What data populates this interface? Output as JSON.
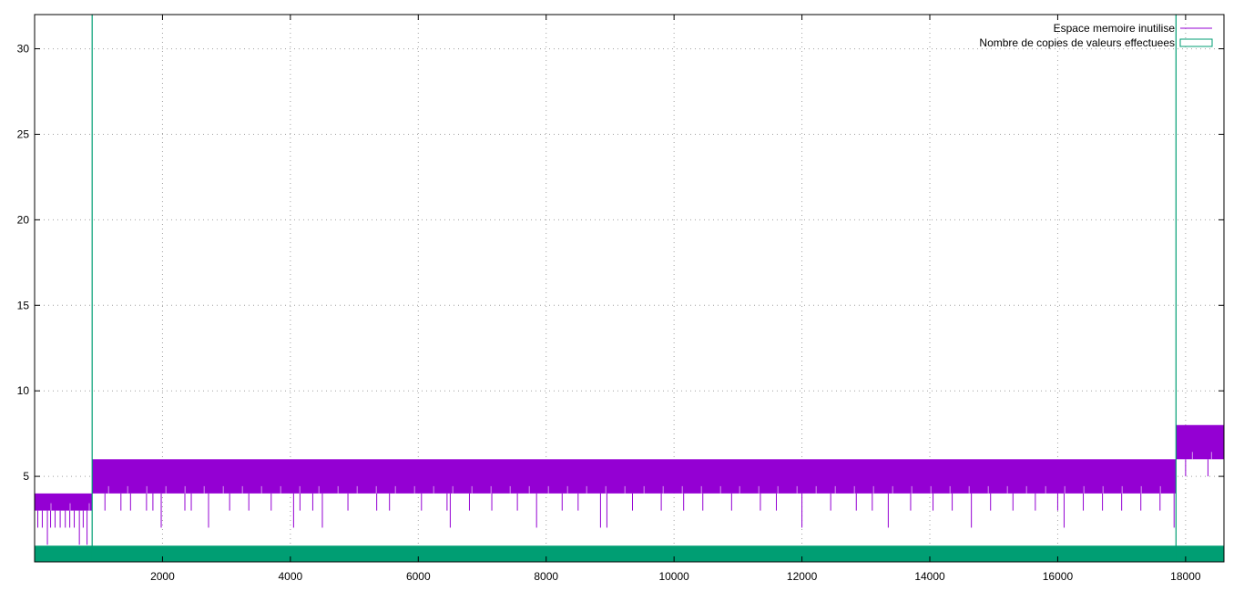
{
  "chart_data": {
    "type": "line",
    "title": "",
    "xlabel": "",
    "ylabel": "",
    "xlim": [
      0,
      18600
    ],
    "ylim": [
      0,
      32
    ],
    "x_ticks": [
      2000,
      4000,
      6000,
      8000,
      10000,
      12000,
      14000,
      16000,
      18000
    ],
    "y_ticks": [
      5,
      10,
      15,
      20,
      25,
      30
    ],
    "grid": true,
    "legend_position": "top-right",
    "series": [
      {
        "name": "Espace memoire inutilise",
        "color": "#9400d3",
        "style": "impulse-band",
        "segments": [
          {
            "x_start": 0,
            "x_end": 900,
            "upper": 4,
            "lower": 3
          },
          {
            "x_start": 900,
            "x_end": 17850,
            "upper": 6,
            "lower": 4
          },
          {
            "x_start": 17850,
            "x_end": 18600,
            "upper": 8,
            "lower": 6
          }
        ],
        "dips": [
          [
            50,
            2
          ],
          [
            120,
            2
          ],
          [
            200,
            1
          ],
          [
            250,
            2
          ],
          [
            320,
            2
          ],
          [
            400,
            2
          ],
          [
            480,
            2
          ],
          [
            550,
            2
          ],
          [
            620,
            2
          ],
          [
            700,
            1
          ],
          [
            760,
            2
          ],
          [
            820,
            1
          ],
          [
            1100,
            3
          ],
          [
            1350,
            3
          ],
          [
            1500,
            3
          ],
          [
            1750,
            3
          ],
          [
            1850,
            3
          ],
          [
            1980,
            2
          ],
          [
            2350,
            3
          ],
          [
            2450,
            3
          ],
          [
            2720,
            2
          ],
          [
            3050,
            3
          ],
          [
            3350,
            3
          ],
          [
            3700,
            3
          ],
          [
            4050,
            2
          ],
          [
            4150,
            3
          ],
          [
            4350,
            3
          ],
          [
            4500,
            2
          ],
          [
            4900,
            3
          ],
          [
            5350,
            3
          ],
          [
            5550,
            3
          ],
          [
            6050,
            3
          ],
          [
            6450,
            3
          ],
          [
            6500,
            2
          ],
          [
            6800,
            3
          ],
          [
            7150,
            3
          ],
          [
            7550,
            3
          ],
          [
            7850,
            2
          ],
          [
            8250,
            3
          ],
          [
            8500,
            3
          ],
          [
            8850,
            2
          ],
          [
            8950,
            2
          ],
          [
            9350,
            3
          ],
          [
            9800,
            3
          ],
          [
            10150,
            3
          ],
          [
            10450,
            3
          ],
          [
            10900,
            3
          ],
          [
            11350,
            3
          ],
          [
            11600,
            3
          ],
          [
            12000,
            2
          ],
          [
            12450,
            3
          ],
          [
            12850,
            3
          ],
          [
            13100,
            3
          ],
          [
            13350,
            2
          ],
          [
            13700,
            3
          ],
          [
            14050,
            3
          ],
          [
            14350,
            3
          ],
          [
            14650,
            2
          ],
          [
            14950,
            3
          ],
          [
            15300,
            3
          ],
          [
            15650,
            3
          ],
          [
            16000,
            3
          ],
          [
            16100,
            2
          ],
          [
            16400,
            3
          ],
          [
            16700,
            3
          ],
          [
            17000,
            3
          ],
          [
            17300,
            3
          ],
          [
            17600,
            3
          ],
          [
            17820,
            2
          ],
          [
            18000,
            5
          ],
          [
            18150,
            6
          ],
          [
            18350,
            5
          ],
          [
            18450,
            6
          ]
        ]
      },
      {
        "name": "Nombre de copies de valeurs effectuees",
        "color": "#009e73",
        "style": "boxes",
        "baseline_value": 1,
        "spikes": [
          900,
          17850
        ]
      }
    ]
  }
}
